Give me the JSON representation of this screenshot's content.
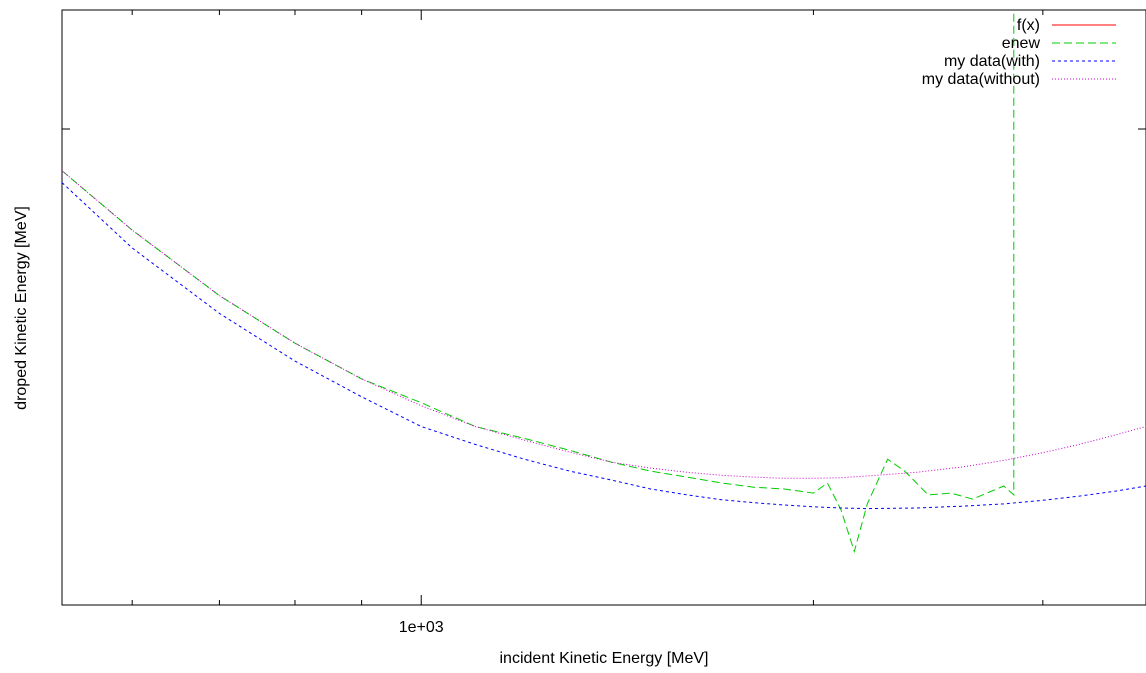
{
  "chart_data": {
    "type": "line",
    "xlabel": "incident Kinetic Energy [MeV]",
    "ylabel": "droped Kinetic Energy [MeV]",
    "x_scale": "log",
    "xlim": [
      530,
      3600
    ],
    "ylim": [
      0,
      1
    ],
    "x_tick_labels": [
      {
        "value": 1000,
        "label": "1e+03"
      }
    ],
    "x_minor_ticks": [
      600,
      700,
      800,
      900,
      2000,
      3000
    ],
    "y_ticks": [
      0.0,
      0.8,
      1.0
    ],
    "grid": false,
    "legend_position": "top-right",
    "series": [
      {
        "name": "f(x)",
        "color": "#ff0000",
        "dash": "solid",
        "x": [],
        "y": []
      },
      {
        "name": "enew",
        "color": "#00cc00",
        "dash": "long-dash",
        "x": [
          530,
          600,
          700,
          800,
          900,
          1000,
          1100,
          1200,
          1300,
          1400,
          1500,
          1600,
          1700,
          1800,
          1900,
          2000,
          2050,
          2100,
          2150,
          2200,
          2280,
          2350,
          2450,
          2550,
          2650,
          2800,
          2850,
          2850
        ],
        "y": [
          0.73,
          0.63,
          0.52,
          0.44,
          0.38,
          0.34,
          0.3,
          0.28,
          0.26,
          0.24,
          0.225,
          0.215,
          0.205,
          0.198,
          0.195,
          0.188,
          0.205,
          0.16,
          0.09,
          0.17,
          0.245,
          0.225,
          0.185,
          0.188,
          0.178,
          0.2,
          0.185,
          1.0
        ]
      },
      {
        "name": "my data(with)",
        "color": "#0000ff",
        "dash": "short-dash",
        "x": [
          530,
          600,
          700,
          800,
          900,
          1000,
          1100,
          1200,
          1300,
          1400,
          1500,
          1600,
          1700,
          1800,
          1900,
          2000,
          2100,
          2200,
          2400,
          2600,
          2800,
          3000,
          3200,
          3400,
          3600
        ],
        "y": [
          0.71,
          0.6,
          0.49,
          0.41,
          0.35,
          0.3,
          0.27,
          0.245,
          0.225,
          0.21,
          0.195,
          0.185,
          0.177,
          0.172,
          0.168,
          0.165,
          0.163,
          0.162,
          0.163,
          0.166,
          0.17,
          0.176,
          0.183,
          0.191,
          0.2
        ]
      },
      {
        "name": "my data(without)",
        "color": "#cc00cc",
        "dash": "dotted",
        "x": [
          530,
          600,
          700,
          800,
          900,
          1000,
          1100,
          1200,
          1300,
          1400,
          1500,
          1600,
          1700,
          1800,
          1900,
          2000,
          2100,
          2200,
          2400,
          2600,
          2800,
          3000,
          3200,
          3400,
          3600
        ],
        "y": [
          0.73,
          0.63,
          0.52,
          0.44,
          0.38,
          0.335,
          0.3,
          0.277,
          0.257,
          0.24,
          0.23,
          0.223,
          0.218,
          0.215,
          0.213,
          0.213,
          0.214,
          0.217,
          0.223,
          0.232,
          0.243,
          0.256,
          0.27,
          0.285,
          0.3
        ]
      }
    ]
  }
}
